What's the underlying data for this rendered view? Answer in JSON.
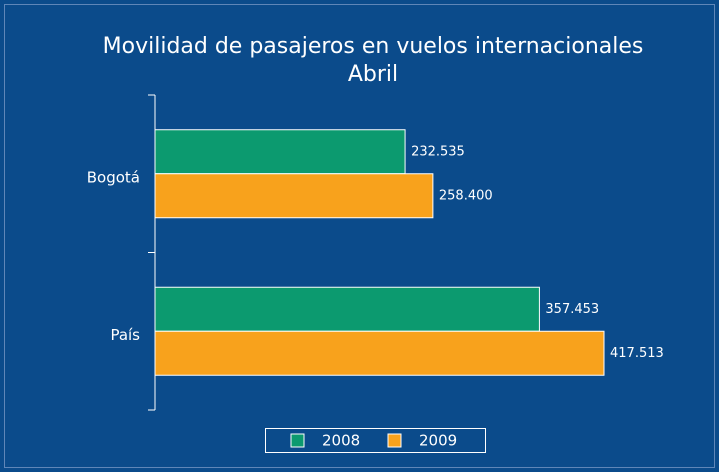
{
  "chart_data": {
    "type": "hbar",
    "title": "Movilidad de pasajeros en vuelos internacionales",
    "subtitle": "Abril",
    "categories": [
      "Bogotá",
      "País"
    ],
    "series": [
      {
        "name": "2008",
        "color": "#0c9a6f",
        "values": [
          232535,
          357453
        ],
        "value_labels": [
          "232.535",
          "357.453"
        ]
      },
      {
        "name": "2009",
        "color": "#f8a21c",
        "values": [
          258400,
          417513
        ],
        "value_labels": [
          "258.400",
          "417.513"
        ]
      }
    ],
    "legend": "bottom"
  }
}
